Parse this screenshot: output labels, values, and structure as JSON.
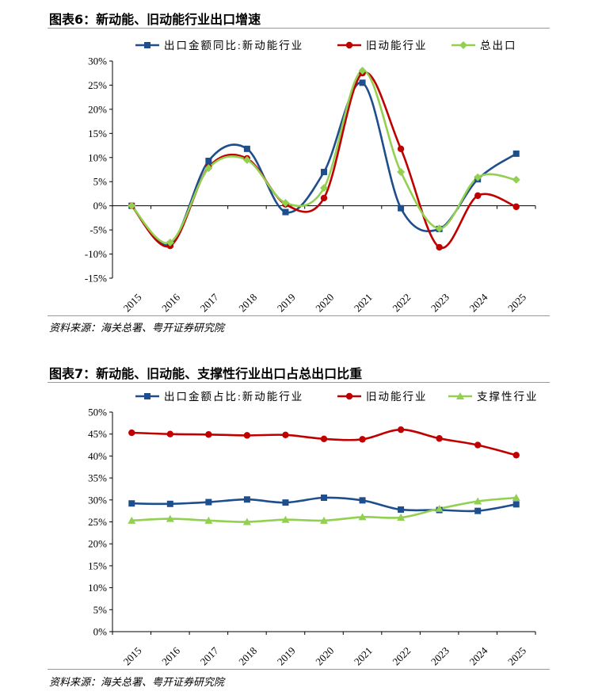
{
  "figures": [
    {
      "title": "图表6：新动能、旧动能行业出口增速",
      "source": "资料来源：海关总署、粤开证券研究院",
      "chart_data": {
        "type": "line",
        "categories": [
          "2015",
          "2016",
          "2017",
          "2018",
          "2019",
          "2020",
          "2021",
          "2022",
          "2023",
          "2024",
          "2025"
        ],
        "ylim": [
          -15,
          30
        ],
        "ystep": 5,
        "yformat": "percent",
        "legend_position": "top",
        "series": [
          {
            "name": "出口金额同比:新动能行业",
            "color": "#1f4e8c",
            "marker": "square",
            "values": [
              0,
              -8,
              9.3,
              11.8,
              -1.3,
              7.0,
              25.5,
              -0.5,
              -4.8,
              5.5,
              10.8
            ]
          },
          {
            "name": "旧动能行业",
            "color": "#c00000",
            "marker": "circle",
            "values": [
              0,
              -8.3,
              8,
              9.8,
              0.3,
              1.6,
              27.5,
              11.8,
              -8.6,
              2.1,
              -0.2
            ]
          },
          {
            "name": "总出口",
            "color": "#92d050",
            "marker": "diamond",
            "values": [
              0,
              -7.6,
              7.8,
              9.5,
              0.6,
              3.7,
              28,
              7,
              -4.7,
              5.9,
              5.4
            ]
          }
        ]
      }
    },
    {
      "title": "图表7：新动能、旧动能、支撑性行业出口占总出口比重",
      "source": "资料来源：海关总署、粤开证券研究院",
      "chart_data": {
        "type": "line",
        "categories": [
          "2015",
          "2016",
          "2017",
          "2018",
          "2019",
          "2020",
          "2021",
          "2022",
          "2023",
          "2024",
          "2025"
        ],
        "ylim": [
          0,
          50
        ],
        "ystep": 5,
        "yformat": "percent",
        "legend_position": "top",
        "series": [
          {
            "name": "出口金额占比:新动能行业",
            "color": "#1f4e8c",
            "marker": "square",
            "values": [
              29.2,
              29.1,
              29.5,
              30.1,
              29.4,
              30.5,
              29.9,
              27.8,
              27.7,
              27.5,
              29.0
            ]
          },
          {
            "name": "旧动能行业",
            "color": "#c00000",
            "marker": "circle",
            "values": [
              45.3,
              45.0,
              44.9,
              44.7,
              44.8,
              43.9,
              43.8,
              46.0,
              44.0,
              42.5,
              40.2
            ]
          },
          {
            "name": "支撑性行业",
            "color": "#92d050",
            "marker": "triangle",
            "values": [
              25.3,
              25.7,
              25.3,
              25.0,
              25.5,
              25.3,
              26.1,
              26.0,
              28.0,
              29.7,
              30.5
            ]
          }
        ]
      }
    }
  ]
}
